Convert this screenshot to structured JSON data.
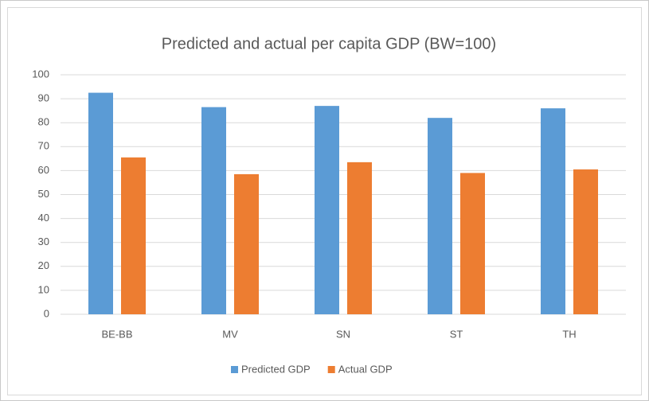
{
  "chart_data": {
    "type": "bar",
    "title": "Predicted and actual per capita GDP (BW=100)",
    "categories": [
      "BE-BB",
      "MV",
      "SN",
      "ST",
      "TH"
    ],
    "series": [
      {
        "name": "Predicted GDP",
        "color": "#5b9bd5",
        "values": [
          92.5,
          86.5,
          87,
          82,
          86
        ]
      },
      {
        "name": "Actual GDP",
        "color": "#ed7d31",
        "values": [
          65.5,
          58.5,
          63.5,
          59,
          60.5
        ]
      }
    ],
    "ylim": [
      0,
      100
    ],
    "yticks": [
      0,
      10,
      20,
      30,
      40,
      50,
      60,
      70,
      80,
      90,
      100
    ],
    "grid": true,
    "legend": "bottom"
  }
}
